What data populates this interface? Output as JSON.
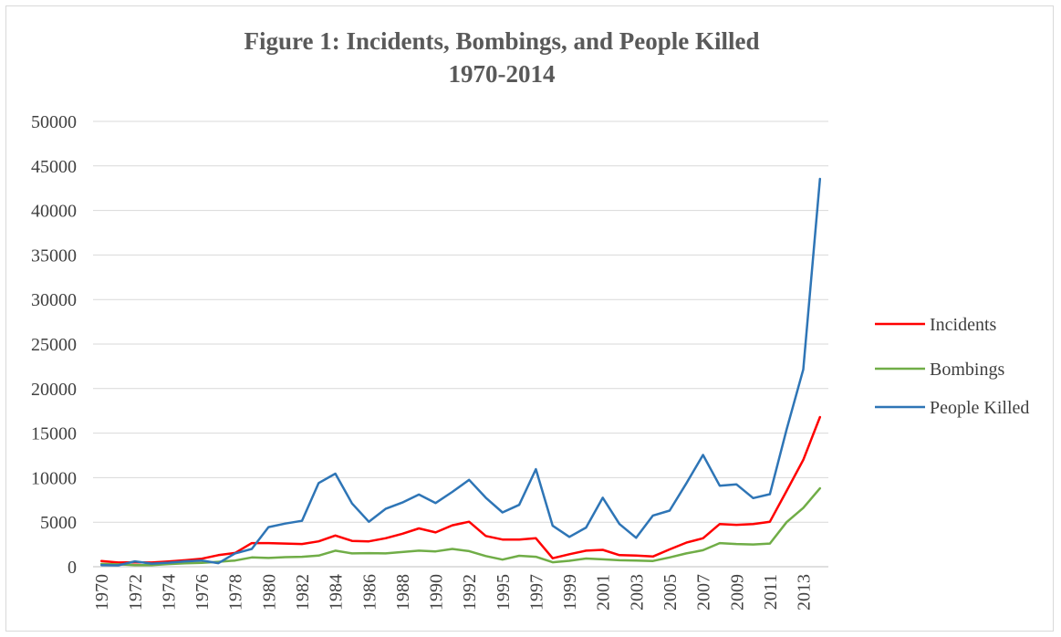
{
  "chart_data": {
    "type": "line",
    "title": [
      "Figure 1: Incidents, Bombings, and People Killed",
      "1970-2014"
    ],
    "xlabel": "",
    "ylabel": "",
    "ylim": [
      0,
      50000
    ],
    "yticks": [
      0,
      5000,
      10000,
      15000,
      20000,
      25000,
      30000,
      35000,
      40000,
      45000,
      50000
    ],
    "grid": true,
    "legend_position": "right",
    "categories": [
      "1970",
      "1971",
      "1972",
      "1973",
      "1974",
      "1975",
      "1976",
      "1977",
      "1978",
      "1979",
      "1980",
      "1981",
      "1982",
      "1983",
      "1984",
      "1985",
      "1986",
      "1987",
      "1988",
      "1989",
      "1990",
      "1991",
      "1992",
      "1994",
      "1995",
      "1996",
      "1997",
      "1998",
      "1999",
      "2000",
      "2001",
      "2002",
      "2003",
      "2004",
      "2005",
      "2006",
      "2007",
      "2008",
      "2009",
      "2010",
      "2011",
      "2012",
      "2013",
      "2014"
    ],
    "xtick_labels": [
      "1970",
      "1972",
      "1974",
      "1976",
      "1978",
      "1980",
      "1982",
      "1984",
      "1986",
      "1988",
      "1990",
      "1992",
      "1995",
      "1997",
      "1999",
      "2001",
      "2003",
      "2005",
      "2007",
      "2009",
      "2011",
      "2013"
    ],
    "series": [
      {
        "name": "Incidents",
        "color": "#ff0000",
        "values": [
          650,
          470,
          500,
          470,
          580,
          730,
          900,
          1300,
          1550,
          2650,
          2650,
          2600,
          2550,
          2850,
          3500,
          2900,
          2850,
          3200,
          3700,
          4300,
          3850,
          4650,
          5050,
          3450,
          3050,
          3050,
          3200,
          950,
          1400,
          1800,
          1900,
          1300,
          1250,
          1150,
          1950,
          2700,
          3200,
          4800,
          4700,
          4800,
          5050,
          8500,
          12000,
          16800
        ]
      },
      {
        "name": "Bombings",
        "color": "#70ad47",
        "values": [
          320,
          270,
          170,
          170,
          300,
          380,
          430,
          550,
          700,
          1050,
          980,
          1080,
          1120,
          1250,
          1800,
          1500,
          1530,
          1500,
          1650,
          1800,
          1720,
          2000,
          1750,
          1200,
          800,
          1230,
          1120,
          500,
          670,
          920,
          830,
          730,
          700,
          650,
          1050,
          1500,
          1850,
          2650,
          2550,
          2500,
          2600,
          5000,
          6600,
          8800
        ]
      },
      {
        "name": "People Killed",
        "color": "#2e75b6",
        "values": [
          180,
          150,
          600,
          350,
          450,
          600,
          700,
          400,
          1500,
          2000,
          4450,
          4850,
          5150,
          9400,
          10450,
          7100,
          5050,
          6500,
          7200,
          8100,
          7150,
          8400,
          9750,
          7750,
          6100,
          6950,
          10950,
          4600,
          3350,
          4400,
          7750,
          4800,
          3250,
          5750,
          6300,
          9350,
          12550,
          9100,
          9250,
          7700,
          8150,
          15400,
          22150,
          43550
        ]
      }
    ]
  }
}
